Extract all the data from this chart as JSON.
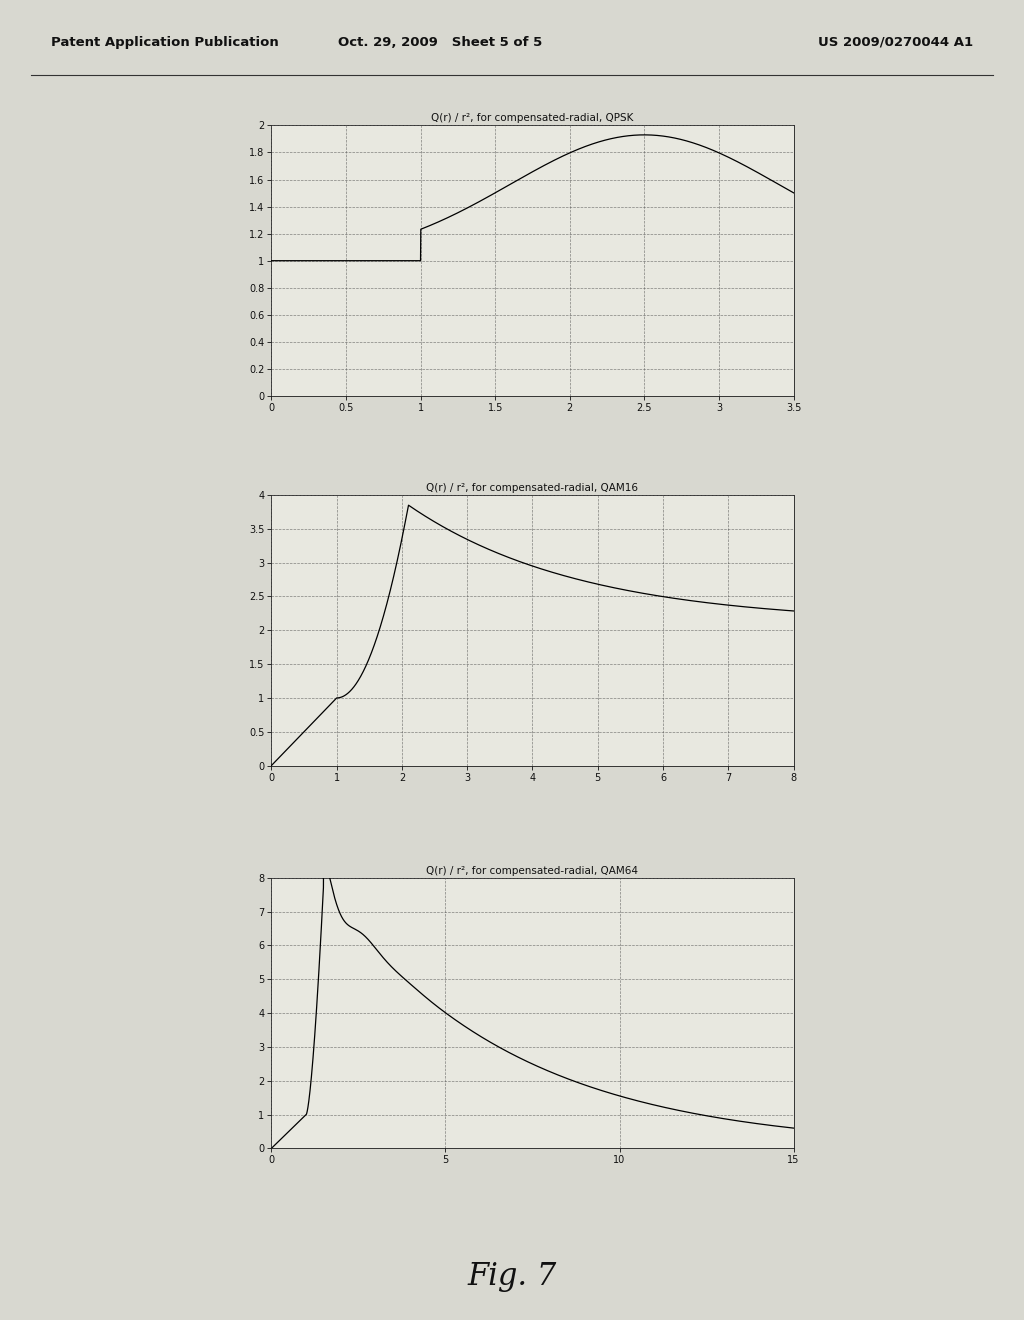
{
  "title1": "Q(r) / r², for compensated-radial, QPSK",
  "title2": "Q(r) / r², for compensated-radial, QAM16",
  "title3": "Q(r) / r², for compensated-radial, QAM64",
  "header_left": "Patent Application Publication",
  "header_center": "Oct. 29, 2009   Sheet 5 of 5",
  "header_right": "US 2009/0270044 A1",
  "fig_label": "Fig. 7",
  "plot1": {
    "xlim": [
      0,
      3.5
    ],
    "ylim": [
      0,
      2
    ],
    "xticks": [
      0,
      0.5,
      1,
      1.5,
      2,
      2.5,
      3,
      3.5
    ],
    "yticks": [
      0,
      0.2,
      0.4,
      0.6,
      0.8,
      1.0,
      1.2,
      1.4,
      1.6,
      1.8,
      2.0
    ]
  },
  "plot2": {
    "xlim": [
      0,
      8
    ],
    "ylim": [
      0,
      4
    ],
    "xticks": [
      0,
      1,
      2,
      3,
      4,
      5,
      6,
      7,
      8
    ],
    "yticks": [
      0,
      0.5,
      1.0,
      1.5,
      2.0,
      2.5,
      3.0,
      3.5,
      4.0
    ]
  },
  "plot3": {
    "xlim": [
      0,
      15
    ],
    "ylim": [
      0,
      8
    ],
    "xticks": [
      0,
      5,
      10,
      15
    ],
    "yticks": [
      0,
      1,
      2,
      3,
      4,
      5,
      6,
      7,
      8
    ]
  },
  "line_color": "#000000",
  "page_bg": "#d8d8d0",
  "plot_bg": "#e8e8e0",
  "grid_color": "#555555",
  "grid_style": "--",
  "grid_alpha": 0.7
}
